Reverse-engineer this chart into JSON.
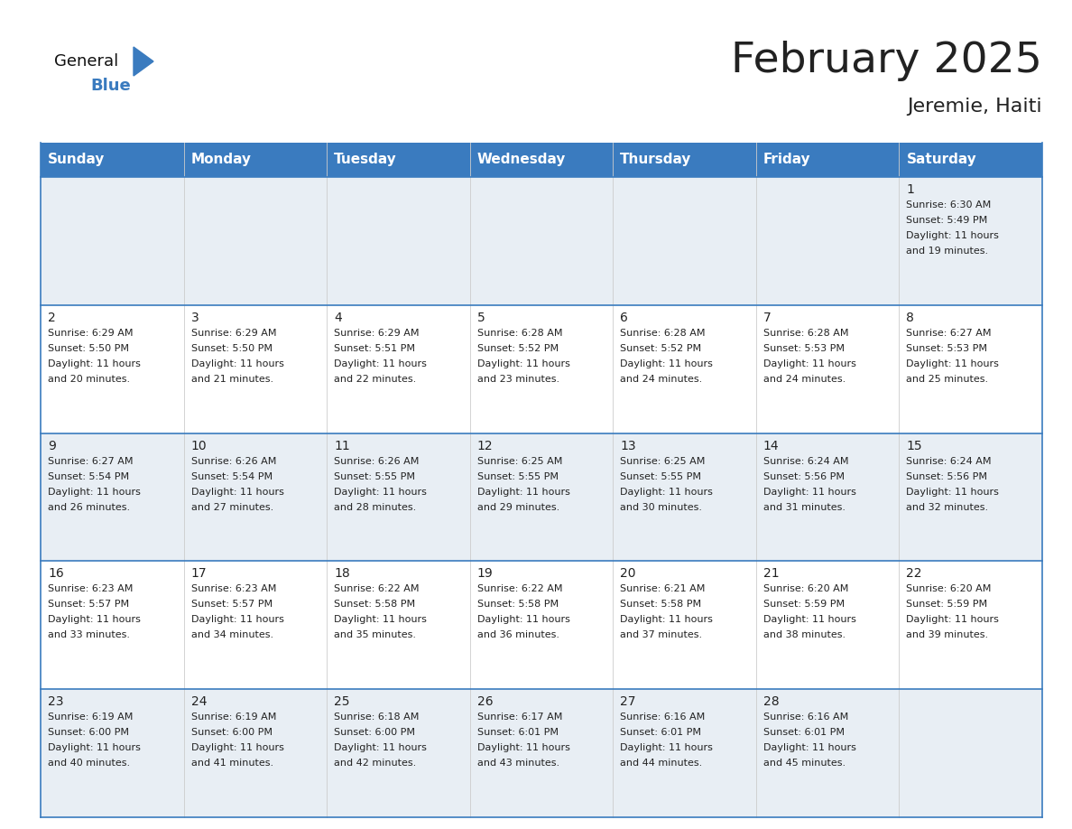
{
  "title": "February 2025",
  "subtitle": "Jeremie, Haiti",
  "header_color": "#3a7bbf",
  "header_text_color": "#ffffff",
  "bg_color": "#ffffff",
  "cell_bg_light": "#e8eef4",
  "cell_bg_white": "#ffffff",
  "grid_line_color": "#3a7bbf",
  "day_headers": [
    "Sunday",
    "Monday",
    "Tuesday",
    "Wednesday",
    "Thursday",
    "Friday",
    "Saturday"
  ],
  "calendar_data": [
    [
      null,
      null,
      null,
      null,
      null,
      null,
      {
        "day": 1,
        "sunrise": "6:30 AM",
        "sunset": "5:49 PM",
        "daylight_hours": 11,
        "daylight_minutes": 19
      }
    ],
    [
      {
        "day": 2,
        "sunrise": "6:29 AM",
        "sunset": "5:50 PM",
        "daylight_hours": 11,
        "daylight_minutes": 20
      },
      {
        "day": 3,
        "sunrise": "6:29 AM",
        "sunset": "5:50 PM",
        "daylight_hours": 11,
        "daylight_minutes": 21
      },
      {
        "day": 4,
        "sunrise": "6:29 AM",
        "sunset": "5:51 PM",
        "daylight_hours": 11,
        "daylight_minutes": 22
      },
      {
        "day": 5,
        "sunrise": "6:28 AM",
        "sunset": "5:52 PM",
        "daylight_hours": 11,
        "daylight_minutes": 23
      },
      {
        "day": 6,
        "sunrise": "6:28 AM",
        "sunset": "5:52 PM",
        "daylight_hours": 11,
        "daylight_minutes": 24
      },
      {
        "day": 7,
        "sunrise": "6:28 AM",
        "sunset": "5:53 PM",
        "daylight_hours": 11,
        "daylight_minutes": 24
      },
      {
        "day": 8,
        "sunrise": "6:27 AM",
        "sunset": "5:53 PM",
        "daylight_hours": 11,
        "daylight_minutes": 25
      }
    ],
    [
      {
        "day": 9,
        "sunrise": "6:27 AM",
        "sunset": "5:54 PM",
        "daylight_hours": 11,
        "daylight_minutes": 26
      },
      {
        "day": 10,
        "sunrise": "6:26 AM",
        "sunset": "5:54 PM",
        "daylight_hours": 11,
        "daylight_minutes": 27
      },
      {
        "day": 11,
        "sunrise": "6:26 AM",
        "sunset": "5:55 PM",
        "daylight_hours": 11,
        "daylight_minutes": 28
      },
      {
        "day": 12,
        "sunrise": "6:25 AM",
        "sunset": "5:55 PM",
        "daylight_hours": 11,
        "daylight_minutes": 29
      },
      {
        "day": 13,
        "sunrise": "6:25 AM",
        "sunset": "5:55 PM",
        "daylight_hours": 11,
        "daylight_minutes": 30
      },
      {
        "day": 14,
        "sunrise": "6:24 AM",
        "sunset": "5:56 PM",
        "daylight_hours": 11,
        "daylight_minutes": 31
      },
      {
        "day": 15,
        "sunrise": "6:24 AM",
        "sunset": "5:56 PM",
        "daylight_hours": 11,
        "daylight_minutes": 32
      }
    ],
    [
      {
        "day": 16,
        "sunrise": "6:23 AM",
        "sunset": "5:57 PM",
        "daylight_hours": 11,
        "daylight_minutes": 33
      },
      {
        "day": 17,
        "sunrise": "6:23 AM",
        "sunset": "5:57 PM",
        "daylight_hours": 11,
        "daylight_minutes": 34
      },
      {
        "day": 18,
        "sunrise": "6:22 AM",
        "sunset": "5:58 PM",
        "daylight_hours": 11,
        "daylight_minutes": 35
      },
      {
        "day": 19,
        "sunrise": "6:22 AM",
        "sunset": "5:58 PM",
        "daylight_hours": 11,
        "daylight_minutes": 36
      },
      {
        "day": 20,
        "sunrise": "6:21 AM",
        "sunset": "5:58 PM",
        "daylight_hours": 11,
        "daylight_minutes": 37
      },
      {
        "day": 21,
        "sunrise": "6:20 AM",
        "sunset": "5:59 PM",
        "daylight_hours": 11,
        "daylight_minutes": 38
      },
      {
        "day": 22,
        "sunrise": "6:20 AM",
        "sunset": "5:59 PM",
        "daylight_hours": 11,
        "daylight_minutes": 39
      }
    ],
    [
      {
        "day": 23,
        "sunrise": "6:19 AM",
        "sunset": "6:00 PM",
        "daylight_hours": 11,
        "daylight_minutes": 40
      },
      {
        "day": 24,
        "sunrise": "6:19 AM",
        "sunset": "6:00 PM",
        "daylight_hours": 11,
        "daylight_minutes": 41
      },
      {
        "day": 25,
        "sunrise": "6:18 AM",
        "sunset": "6:00 PM",
        "daylight_hours": 11,
        "daylight_minutes": 42
      },
      {
        "day": 26,
        "sunrise": "6:17 AM",
        "sunset": "6:01 PM",
        "daylight_hours": 11,
        "daylight_minutes": 43
      },
      {
        "day": 27,
        "sunrise": "6:16 AM",
        "sunset": "6:01 PM",
        "daylight_hours": 11,
        "daylight_minutes": 44
      },
      {
        "day": 28,
        "sunrise": "6:16 AM",
        "sunset": "6:01 PM",
        "daylight_hours": 11,
        "daylight_minutes": 45
      },
      null
    ]
  ],
  "text_color": "#222222",
  "day_num_fontsize": 10,
  "cell_text_fontsize": 8,
  "header_fontsize": 11,
  "title_fontsize": 34,
  "subtitle_fontsize": 16,
  "logo_general_fontsize": 13,
  "logo_blue_fontsize": 13
}
